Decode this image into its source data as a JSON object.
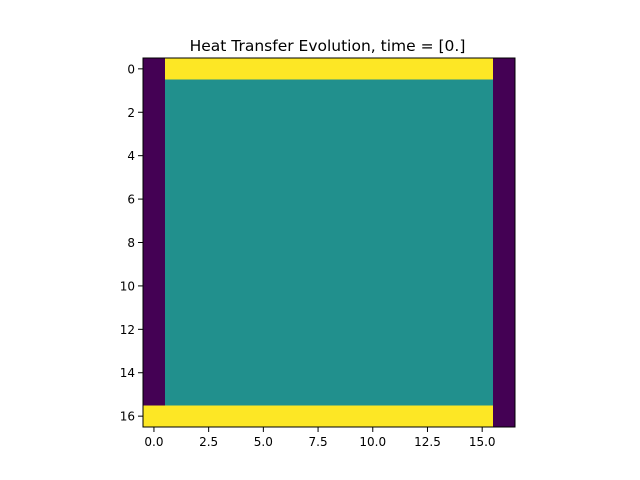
{
  "chart_data": {
    "type": "heatmap",
    "title": "Heat Transfer Evolution, time = [0.]",
    "xlabel": "",
    "ylabel": "",
    "rows": 17,
    "cols": 17,
    "xlim": [
      -0.5,
      16.5
    ],
    "ylim": [
      16.5,
      -0.5
    ],
    "xticks": [
      0.0,
      2.5,
      5.0,
      7.5,
      10.0,
      12.5,
      15.0
    ],
    "xtick_labels": [
      "0.0",
      "2.5",
      "5.0",
      "7.5",
      "10.0",
      "12.5",
      "15.0"
    ],
    "yticks": [
      0,
      2,
      4,
      6,
      8,
      10,
      12,
      14,
      16
    ],
    "ytick_labels": [
      "0",
      "2",
      "4",
      "6",
      "8",
      "10",
      "12",
      "14",
      "16"
    ],
    "colormap": "viridis",
    "colors": {
      "low": "#440154",
      "mid": "#21908d",
      "high": "#fde725"
    },
    "value_range": [
      0,
      1
    ],
    "regions": [
      {
        "level": 0.5,
        "rows": [
          1,
          15
        ],
        "cols": [
          1,
          15
        ]
      },
      {
        "level": 1.0,
        "rows": [
          0,
          0
        ],
        "cols": [
          1,
          15
        ]
      },
      {
        "level": 1.0,
        "rows": [
          16,
          16
        ],
        "cols": [
          0,
          15
        ]
      },
      {
        "level": 0.0,
        "rows": [
          0,
          15
        ],
        "cols": [
          0,
          0
        ]
      },
      {
        "level": 0.0,
        "rows": [
          0,
          16
        ],
        "cols": [
          16,
          16
        ]
      }
    ],
    "grid": false
  }
}
